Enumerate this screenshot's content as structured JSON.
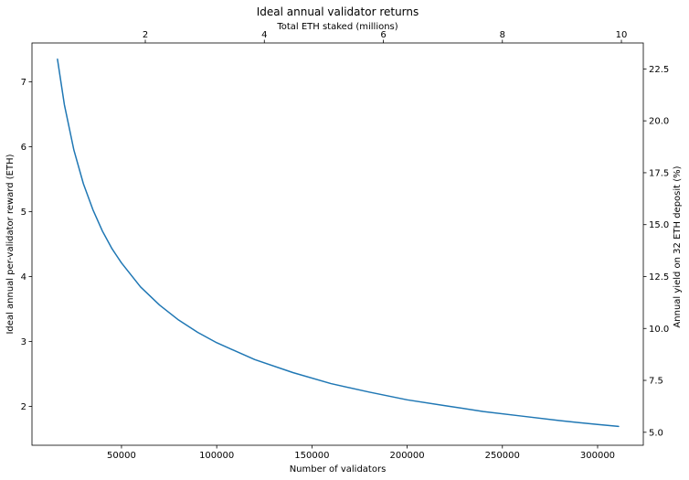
{
  "chart_data": {
    "type": "line",
    "title": "Ideal annual validator returns",
    "xlabel": "Number of validators",
    "ylabel": "Ideal annual per-validator reward (ETH)",
    "secondary_xlabel": "Total ETH staked (millions)",
    "secondary_ylabel": "Annual yield on 32 ETH deposit (%)",
    "xlim": [
      3000,
      324000
    ],
    "ylim": [
      1.4,
      7.6
    ],
    "secondary_xlim": [
      0.096,
      10.368
    ],
    "secondary_ylim": [
      4.375,
      23.75
    ],
    "grid": false,
    "x_ticks": [
      50000,
      100000,
      150000,
      200000,
      250000,
      300000
    ],
    "x_tick_labels": [
      "50000",
      "100000",
      "150000",
      "200000",
      "250000",
      "300000"
    ],
    "y_ticks": [
      2,
      3,
      4,
      5,
      6,
      7
    ],
    "y_tick_labels": [
      "2",
      "3",
      "4",
      "5",
      "6",
      "7"
    ],
    "secondary_x_ticks": [
      2,
      4,
      6,
      8,
      10
    ],
    "secondary_x_tick_labels": [
      "2",
      "4",
      "6",
      "8",
      "10"
    ],
    "secondary_y_ticks": [
      5.0,
      7.5,
      10.0,
      12.5,
      15.0,
      17.5,
      20.0,
      22.5
    ],
    "secondary_y_tick_labels": [
      "5.0",
      "7.5",
      "10.0",
      "12.5",
      "15.0",
      "17.5",
      "20.0",
      "22.5"
    ],
    "series": [
      {
        "color": "#1f77b4",
        "x": [
          16384,
          20000,
          25000,
          30000,
          35000,
          40000,
          45000,
          50000,
          60000,
          70000,
          80000,
          90000,
          100000,
          120000,
          140000,
          160000,
          180000,
          200000,
          220000,
          240000,
          260000,
          280000,
          300000,
          311000
        ],
        "y": [
          7.35,
          6.65,
          5.95,
          5.43,
          5.03,
          4.7,
          4.43,
          4.21,
          3.84,
          3.56,
          3.33,
          3.14,
          2.98,
          2.72,
          2.52,
          2.35,
          2.22,
          2.1,
          2.01,
          1.92,
          1.85,
          1.78,
          1.72,
          1.69
        ]
      }
    ]
  }
}
